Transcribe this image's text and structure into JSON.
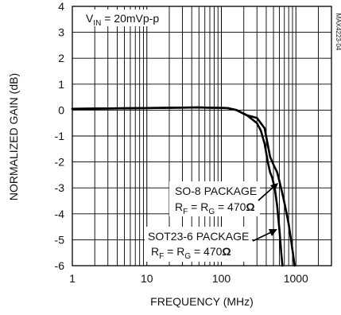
{
  "chart_data": {
    "type": "line",
    "xscale": "log",
    "xlim": [
      1,
      3000
    ],
    "ylim": [
      -6,
      4
    ],
    "x_ticks": [
      1,
      10,
      100,
      1000
    ],
    "x_tick_labels": [
      "1",
      "10",
      "100",
      "1000"
    ],
    "y_ticks": [
      4,
      3,
      2,
      1,
      0,
      -1,
      -2,
      -3,
      -4,
      -5,
      -6
    ],
    "y_tick_labels": [
      "4",
      "3",
      "2",
      "1",
      "0",
      "-1",
      "-2",
      "-3",
      "-4",
      "-5",
      "-6"
    ],
    "xlabel": "FREQUENCY (MHz)",
    "ylabel": "NORMALIZED GAIN (dB)",
    "grid": true,
    "series": [
      {
        "id": "so8",
        "x": [
          1,
          10,
          50,
          120,
          160,
          220,
          300,
          380,
          450,
          500,
          560,
          620,
          680,
          740,
          800,
          860,
          920,
          960
        ],
        "y": [
          0.05,
          0.08,
          0.1,
          0.08,
          0,
          -0.2,
          -0.3,
          -0.7,
          -1.8,
          -2.1,
          -2.4,
          -2.9,
          -3.4,
          -3.9,
          -4.4,
          -5.0,
          -5.6,
          -6.0
        ]
      },
      {
        "id": "sot23",
        "x": [
          1,
          10,
          50,
          120,
          160,
          220,
          300,
          340,
          380,
          420,
          450,
          480,
          520,
          560,
          600,
          640,
          660
        ],
        "y": [
          0.05,
          0.08,
          0.1,
          0.08,
          0,
          -0.2,
          -0.5,
          -0.8,
          -1.3,
          -2.0,
          -2.4,
          -2.6,
          -3.0,
          -3.7,
          -4.6,
          -5.6,
          -6.0
        ]
      }
    ],
    "annotations": {
      "condition": {
        "main": "V",
        "sub": "IN",
        "rest": " = 20mVp-p"
      },
      "so8_label": "SO-8 PACKAGE",
      "sot23_label": "SOT23-6 PACKAGE",
      "resistor_label": {
        "r1": "R",
        "r1_sub": "F",
        "eq": " = R",
        "r2_sub": "G",
        "rest": " = 470",
        "omega": "Ω"
      },
      "figure_id": "MAX4223-04"
    }
  }
}
